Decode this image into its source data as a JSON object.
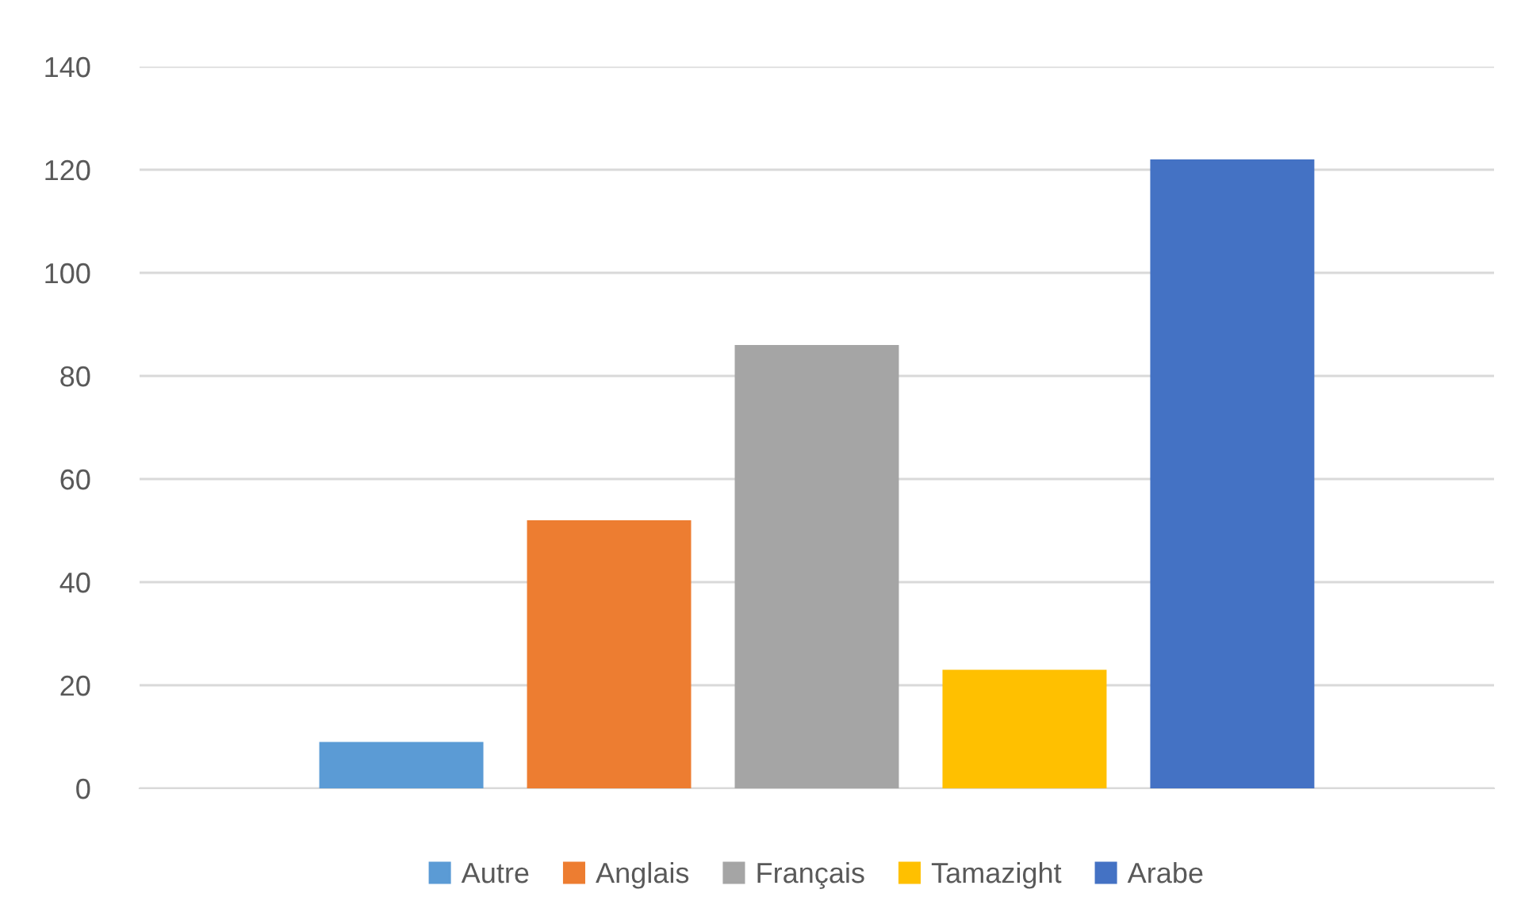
{
  "chart_data": {
    "type": "bar",
    "categories": [
      null
    ],
    "series": [
      {
        "name": "Autre",
        "color": "#5b9bd5",
        "values": [
          9
        ]
      },
      {
        "name": "Anglais",
        "color": "#ed7d31",
        "values": [
          52
        ]
      },
      {
        "name": "Français",
        "color": "#a5a5a5",
        "values": [
          86
        ]
      },
      {
        "name": "Tamazight",
        "color": "#ffc000",
        "values": [
          23
        ]
      },
      {
        "name": "Arabe",
        "color": "#4472c4",
        "values": [
          122
        ]
      }
    ],
    "ylim": [
      0,
      140
    ],
    "yticks": [
      0,
      20,
      40,
      60,
      80,
      100,
      120,
      140
    ],
    "grid": "y",
    "legend": "bottom"
  }
}
